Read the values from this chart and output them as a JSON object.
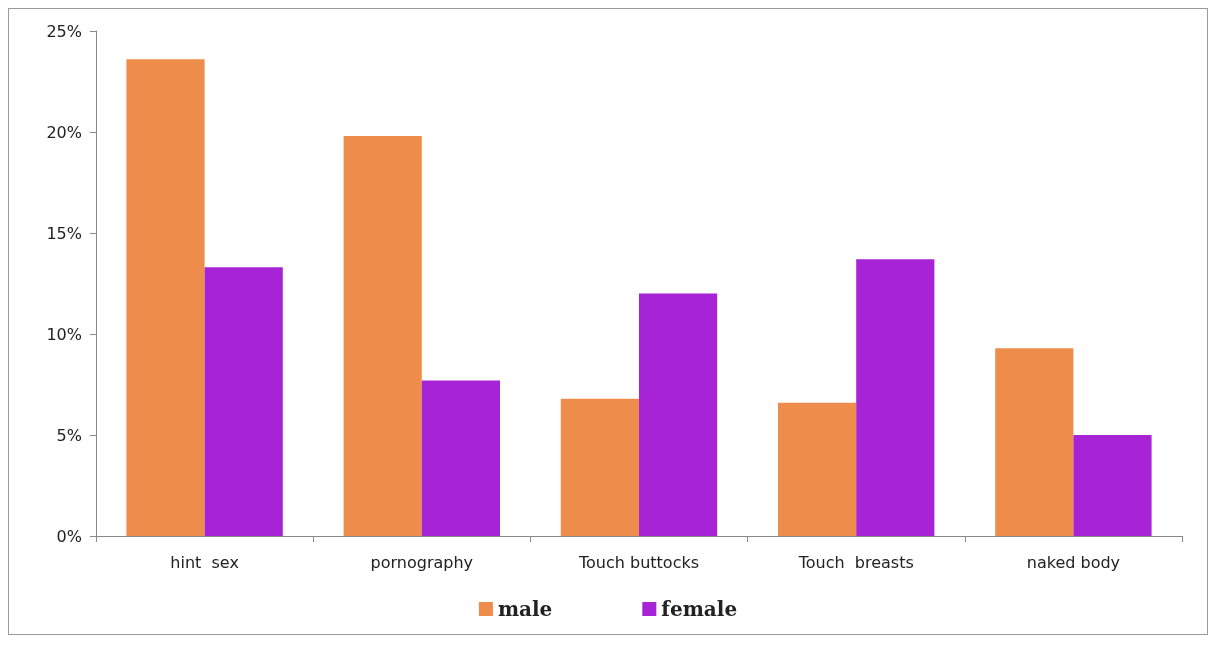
{
  "chart_data": {
    "type": "bar",
    "categories": [
      "hint  sex",
      "pornography",
      "Touch buttocks",
      "Touch  breasts",
      "naked body"
    ],
    "series": [
      {
        "name": "male",
        "color": "#ed8c4b",
        "values": [
          23.6,
          19.8,
          6.8,
          6.6,
          9.3
        ]
      },
      {
        "name": "female",
        "color": "#a623d6",
        "values": [
          13.3,
          7.7,
          12.0,
          13.7,
          5.0
        ]
      }
    ],
    "ylim": [
      0,
      25
    ],
    "yticks": [
      {
        "value": 0,
        "label": "0%"
      },
      {
        "value": 5,
        "label": "5%"
      },
      {
        "value": 10,
        "label": "10%"
      },
      {
        "value": 15,
        "label": "15%"
      },
      {
        "value": 20,
        "label": "20%"
      },
      {
        "value": 25,
        "label": "25%"
      }
    ],
    "grid": false,
    "legend": "bottom"
  }
}
